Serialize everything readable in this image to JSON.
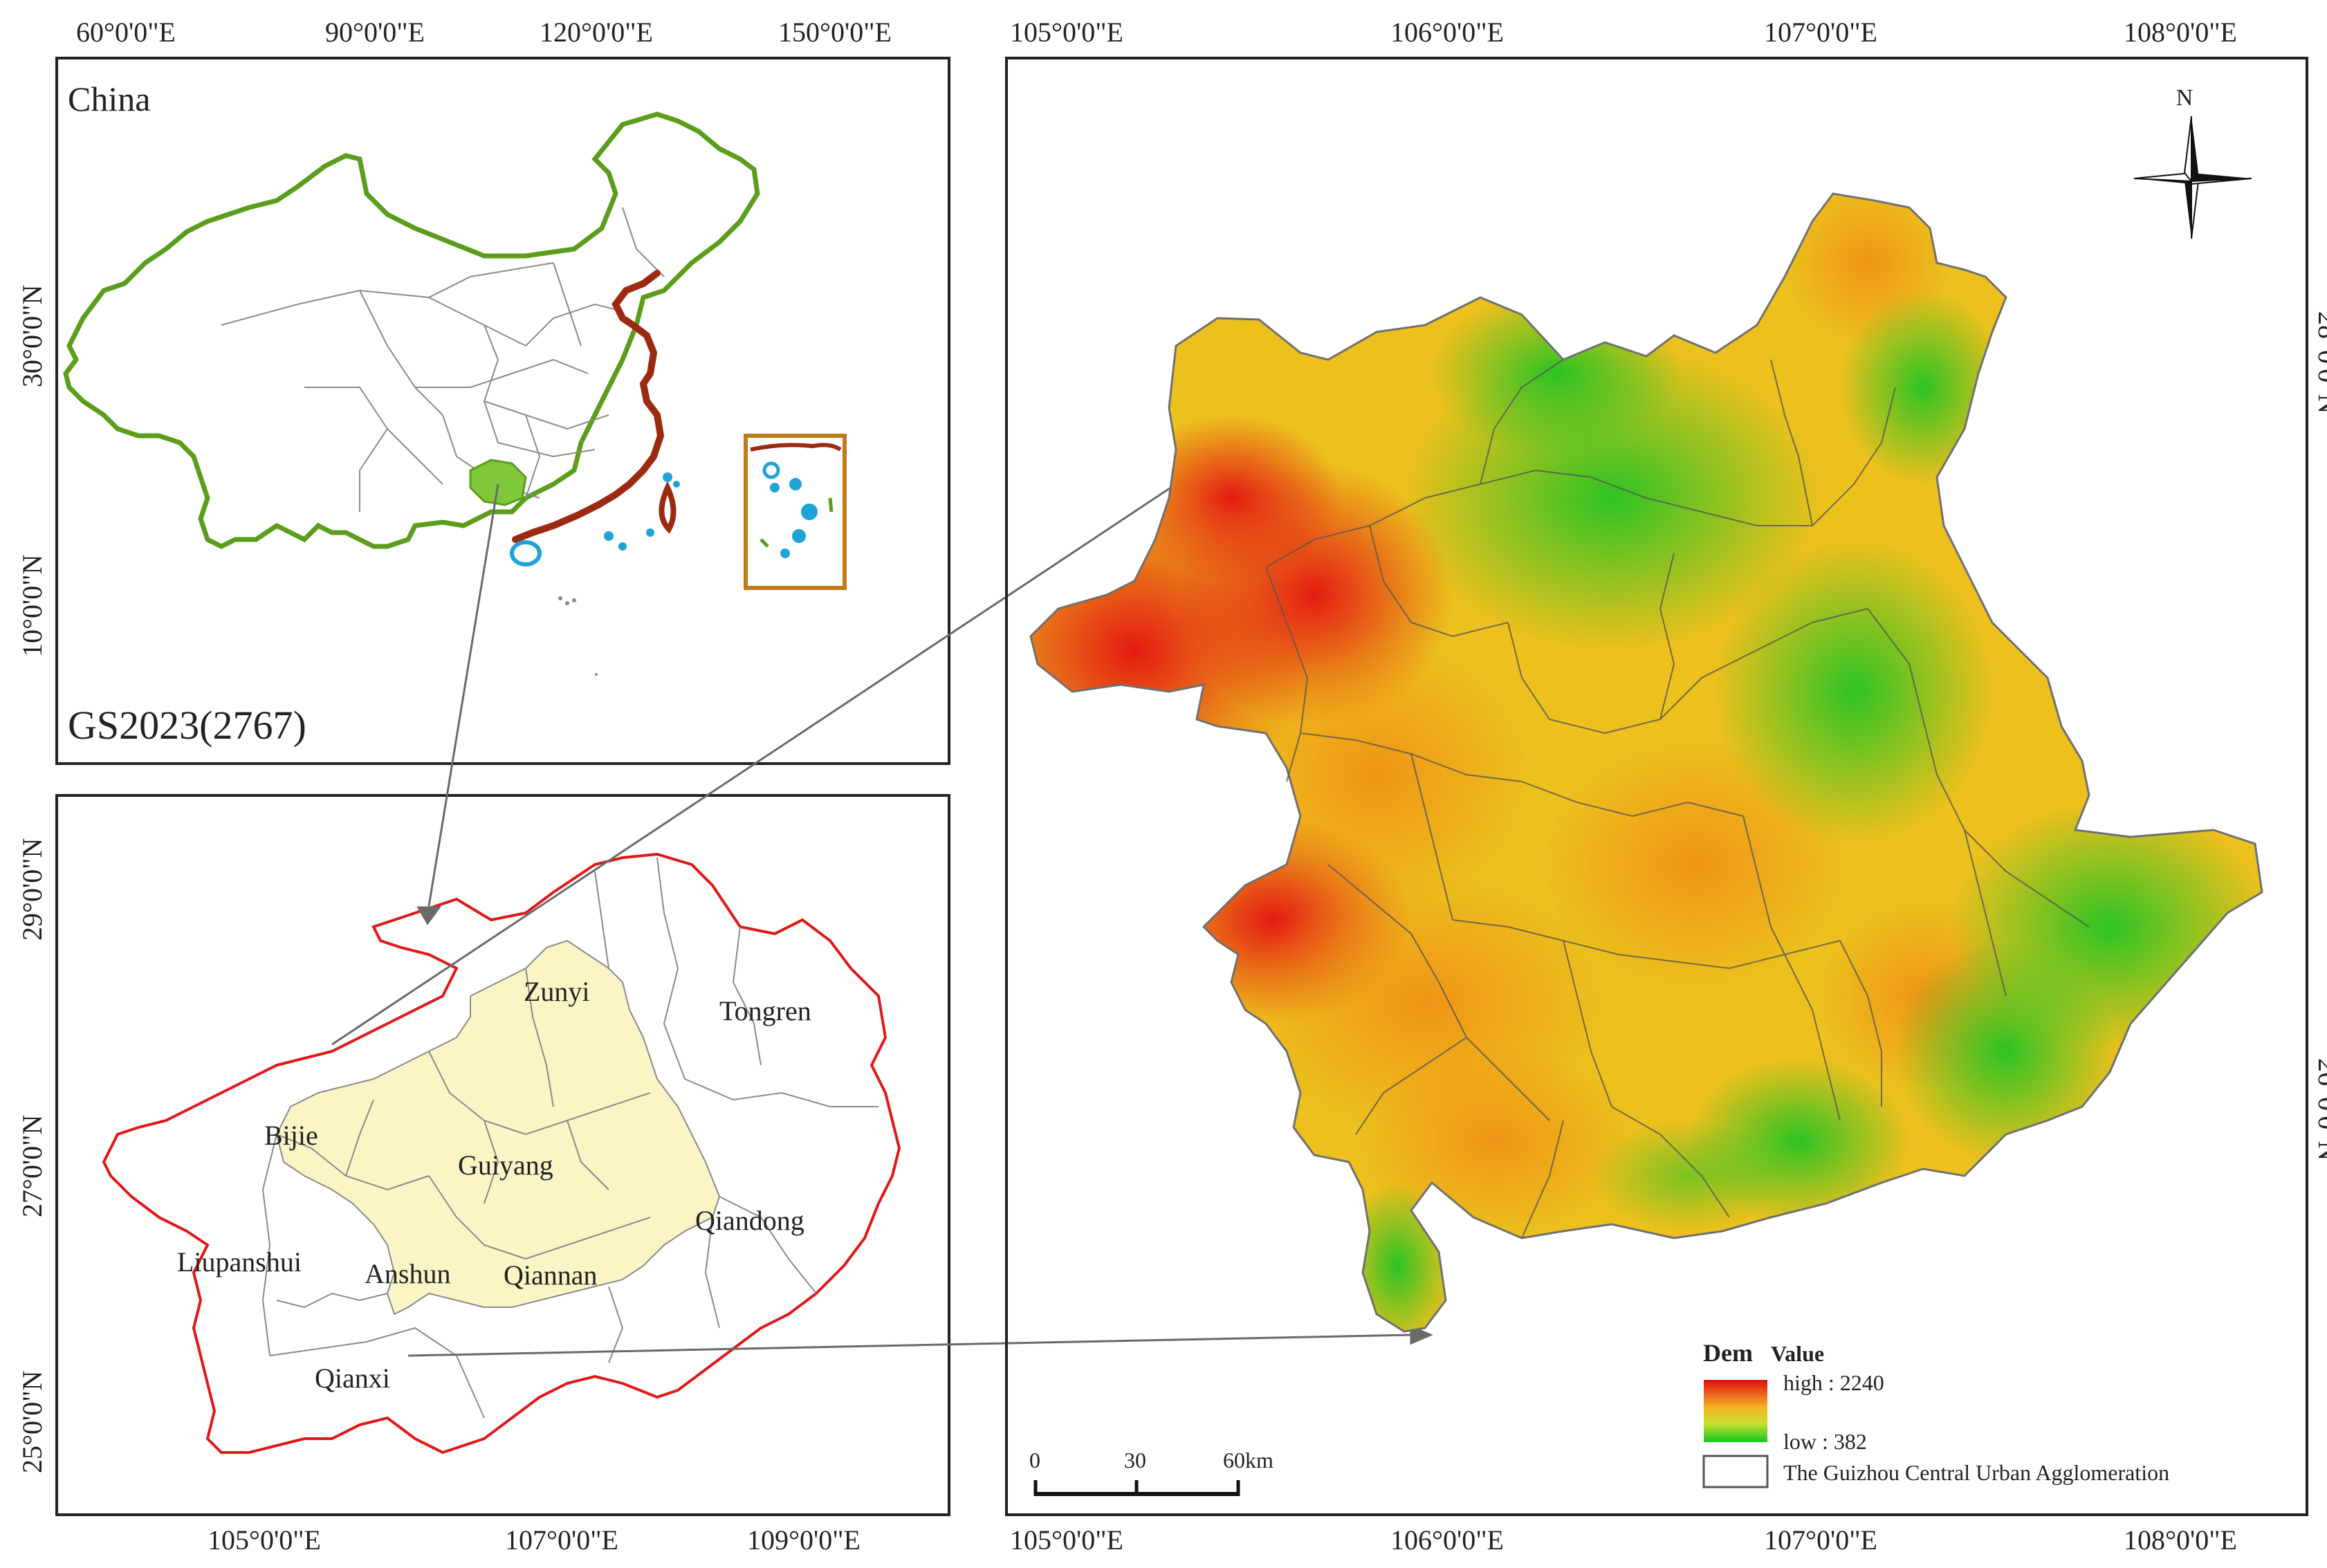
{
  "panels": {
    "china": {
      "title": "China",
      "approval_number": "GS2023(2767)",
      "lon_ticks": [
        "60°0'0\"E",
        "90°0'0\"E",
        "120°0'0\"E",
        "150°0'0\"E"
      ],
      "lat_ticks": [
        "30°0'0\"N",
        "10°0'0\"N"
      ]
    },
    "guizhou": {
      "lon_ticks": [
        "105°0'0\"E",
        "107°0'0\"E",
        "109°0'0\"E"
      ],
      "lat_ticks": [
        "29°0'0\"N",
        "27°0'0\"N",
        "25°0'0\"N"
      ],
      "cities": [
        "Zunyi",
        "Tongren",
        "Bijie",
        "Guiyang",
        "Qiandong",
        "Liupanshui",
        "Anshun",
        "Qiannan",
        "Qianxi"
      ]
    },
    "dem": {
      "lon_ticks_top": [
        "105°0'0\"E",
        "106°0'0\"E",
        "107°0'0\"E",
        "108°0'0\"E"
      ],
      "lon_ticks_bottom": [
        "105°0'0\"E",
        "106°0'0\"E",
        "107°0'0\"E",
        "108°0'0\"E"
      ],
      "lat_ticks": [
        "28°0'0\"N",
        "26°0'0\"N"
      ],
      "north_label": "N",
      "scale_labels": [
        "0",
        "30",
        "60km"
      ]
    }
  },
  "legend": {
    "title_bold": "Dem",
    "title_rest": "Value",
    "high_label": "high : 2240",
    "low_label": "low : 382",
    "boundary_label": "The Guizhou Central Urban Agglomeration"
  },
  "colors": {
    "china_border": "#5a9e1b",
    "coast": "#9b2a10",
    "guizhou_fill": "#80c83a",
    "islands": "#1fa3d6",
    "inset_box": "#c07a18",
    "guizhou_border": "#e01818",
    "agglomeration_fill": "#fbf5c6",
    "dem_high": "#e01010",
    "dem_mid": "#f0b020",
    "dem_low": "#10c820"
  }
}
